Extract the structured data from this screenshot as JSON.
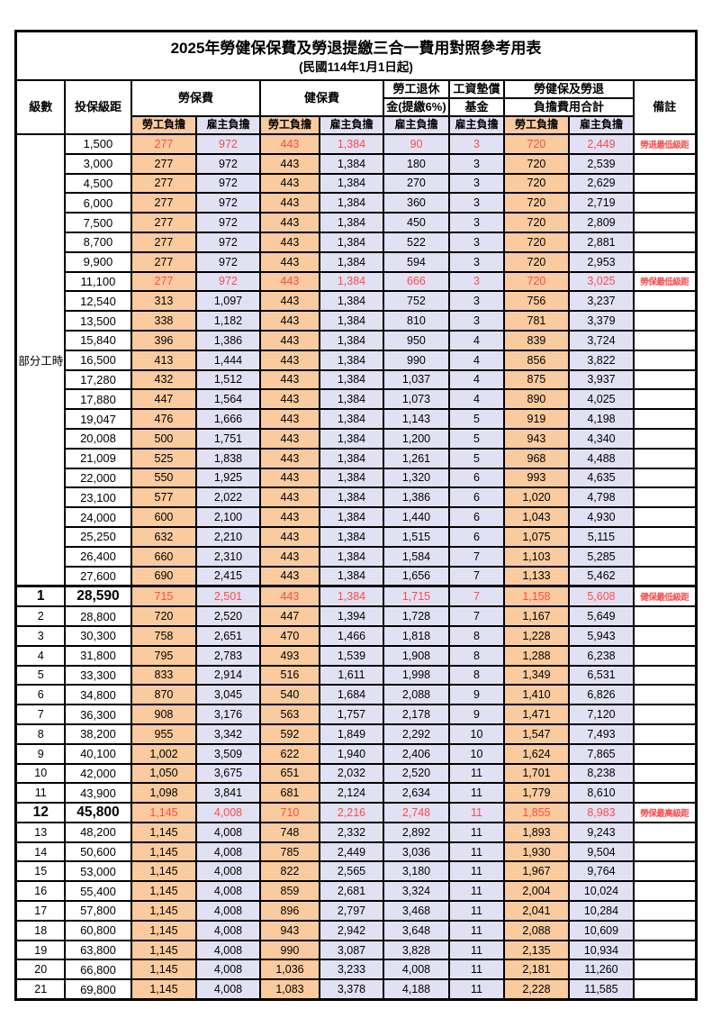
{
  "title": {
    "main": "2025年勞健保保費及勞退提繳三合一費用對照參考用表",
    "sub": "(民國114年1月1日起)"
  },
  "colors": {
    "employee_column_bg": "#F9CB9E",
    "employer_column_bg": "#E2E1F3",
    "highlight_red": "#FF4A4A"
  },
  "header": {
    "level": "級數",
    "bracket": "投保級距",
    "labor": "勞保費",
    "health": "健保費",
    "pension_line1": "勞工退休",
    "pension_line2": "金(提繳6%)",
    "fund_line1": "工資墊償",
    "fund_line2": "基金",
    "total_line1": "勞健保及勞退",
    "total_line2": "負擔費用合計",
    "note": "備註",
    "sub_emp": "勞工負擔",
    "sub_er": "雇主負擔"
  },
  "table": {
    "group_label": "部分工時",
    "group_span": 23,
    "rows": [
      {
        "level": null,
        "bracket": "1,500",
        "values": [
          "277",
          "972",
          "443",
          "1,384",
          "90",
          "3",
          "720",
          "2,449"
        ],
        "note": "勞退最低級距",
        "red": true,
        "big": false
      },
      {
        "level": null,
        "bracket": "3,000",
        "values": [
          "277",
          "972",
          "443",
          "1,384",
          "180",
          "3",
          "720",
          "2,539"
        ],
        "note": "",
        "red": false,
        "big": false
      },
      {
        "level": null,
        "bracket": "4,500",
        "values": [
          "277",
          "972",
          "443",
          "1,384",
          "270",
          "3",
          "720",
          "2,629"
        ],
        "note": "",
        "red": false,
        "big": false
      },
      {
        "level": null,
        "bracket": "6,000",
        "values": [
          "277",
          "972",
          "443",
          "1,384",
          "360",
          "3",
          "720",
          "2,719"
        ],
        "note": "",
        "red": false,
        "big": false
      },
      {
        "level": null,
        "bracket": "7,500",
        "values": [
          "277",
          "972",
          "443",
          "1,384",
          "450",
          "3",
          "720",
          "2,809"
        ],
        "note": "",
        "red": false,
        "big": false
      },
      {
        "level": null,
        "bracket": "8,700",
        "values": [
          "277",
          "972",
          "443",
          "1,384",
          "522",
          "3",
          "720",
          "2,881"
        ],
        "note": "",
        "red": false,
        "big": false
      },
      {
        "level": null,
        "bracket": "9,900",
        "values": [
          "277",
          "972",
          "443",
          "1,384",
          "594",
          "3",
          "720",
          "2,953"
        ],
        "note": "",
        "red": false,
        "big": false
      },
      {
        "level": null,
        "bracket": "11,100",
        "values": [
          "277",
          "972",
          "443",
          "1,384",
          "666",
          "3",
          "720",
          "3,025"
        ],
        "note": "勞保最低級距",
        "red": true,
        "big": false
      },
      {
        "level": null,
        "bracket": "12,540",
        "values": [
          "313",
          "1,097",
          "443",
          "1,384",
          "752",
          "3",
          "756",
          "3,237"
        ],
        "note": "",
        "red": false,
        "big": false
      },
      {
        "level": null,
        "bracket": "13,500",
        "values": [
          "338",
          "1,182",
          "443",
          "1,384",
          "810",
          "3",
          "781",
          "3,379"
        ],
        "note": "",
        "red": false,
        "big": false
      },
      {
        "level": null,
        "bracket": "15,840",
        "values": [
          "396",
          "1,386",
          "443",
          "1,384",
          "950",
          "4",
          "839",
          "3,724"
        ],
        "note": "",
        "red": false,
        "big": false
      },
      {
        "level": null,
        "bracket": "16,500",
        "values": [
          "413",
          "1,444",
          "443",
          "1,384",
          "990",
          "4",
          "856",
          "3,822"
        ],
        "note": "",
        "red": false,
        "big": false
      },
      {
        "level": null,
        "bracket": "17,280",
        "values": [
          "432",
          "1,512",
          "443",
          "1,384",
          "1,037",
          "4",
          "875",
          "3,937"
        ],
        "note": "",
        "red": false,
        "big": false
      },
      {
        "level": null,
        "bracket": "17,880",
        "values": [
          "447",
          "1,564",
          "443",
          "1,384",
          "1,073",
          "4",
          "890",
          "4,025"
        ],
        "note": "",
        "red": false,
        "big": false
      },
      {
        "level": null,
        "bracket": "19,047",
        "values": [
          "476",
          "1,666",
          "443",
          "1,384",
          "1,143",
          "5",
          "919",
          "4,198"
        ],
        "note": "",
        "red": false,
        "big": false
      },
      {
        "level": null,
        "bracket": "20,008",
        "values": [
          "500",
          "1,751",
          "443",
          "1,384",
          "1,200",
          "5",
          "943",
          "4,340"
        ],
        "note": "",
        "red": false,
        "big": false
      },
      {
        "level": null,
        "bracket": "21,009",
        "values": [
          "525",
          "1,838",
          "443",
          "1,384",
          "1,261",
          "5",
          "968",
          "4,488"
        ],
        "note": "",
        "red": false,
        "big": false
      },
      {
        "level": null,
        "bracket": "22,000",
        "values": [
          "550",
          "1,925",
          "443",
          "1,384",
          "1,320",
          "6",
          "993",
          "4,635"
        ],
        "note": "",
        "red": false,
        "big": false
      },
      {
        "level": null,
        "bracket": "23,100",
        "values": [
          "577",
          "2,022",
          "443",
          "1,384",
          "1,386",
          "6",
          "1,020",
          "4,798"
        ],
        "note": "",
        "red": false,
        "big": false
      },
      {
        "level": null,
        "bracket": "24,000",
        "values": [
          "600",
          "2,100",
          "443",
          "1,384",
          "1,440",
          "6",
          "1,043",
          "4,930"
        ],
        "note": "",
        "red": false,
        "big": false
      },
      {
        "level": null,
        "bracket": "25,250",
        "values": [
          "632",
          "2,210",
          "443",
          "1,384",
          "1,515",
          "6",
          "1,075",
          "5,115"
        ],
        "note": "",
        "red": false,
        "big": false
      },
      {
        "level": null,
        "bracket": "26,400",
        "values": [
          "660",
          "2,310",
          "443",
          "1,384",
          "1,584",
          "7",
          "1,103",
          "5,285"
        ],
        "note": "",
        "red": false,
        "big": false
      },
      {
        "level": null,
        "bracket": "27,600",
        "values": [
          "690",
          "2,415",
          "443",
          "1,384",
          "1,656",
          "7",
          "1,133",
          "5,462"
        ],
        "note": "",
        "red": false,
        "big": false
      },
      {
        "level": "1",
        "bracket": "28,590",
        "values": [
          "715",
          "2,501",
          "443",
          "1,384",
          "1,715",
          "7",
          "1,158",
          "5,608"
        ],
        "note": "健保最低級距",
        "red": true,
        "big": true
      },
      {
        "level": "2",
        "bracket": "28,800",
        "values": [
          "720",
          "2,520",
          "447",
          "1,394",
          "1,728",
          "7",
          "1,167",
          "5,649"
        ],
        "note": "",
        "red": false,
        "big": false
      },
      {
        "level": "3",
        "bracket": "30,300",
        "values": [
          "758",
          "2,651",
          "470",
          "1,466",
          "1,818",
          "8",
          "1,228",
          "5,943"
        ],
        "note": "",
        "red": false,
        "big": false
      },
      {
        "level": "4",
        "bracket": "31,800",
        "values": [
          "795",
          "2,783",
          "493",
          "1,539",
          "1,908",
          "8",
          "1,288",
          "6,238"
        ],
        "note": "",
        "red": false,
        "big": false
      },
      {
        "level": "5",
        "bracket": "33,300",
        "values": [
          "833",
          "2,914",
          "516",
          "1,611",
          "1,998",
          "8",
          "1,349",
          "6,531"
        ],
        "note": "",
        "red": false,
        "big": false
      },
      {
        "level": "6",
        "bracket": "34,800",
        "values": [
          "870",
          "3,045",
          "540",
          "1,684",
          "2,088",
          "9",
          "1,410",
          "6,826"
        ],
        "note": "",
        "red": false,
        "big": false
      },
      {
        "level": "7",
        "bracket": "36,300",
        "values": [
          "908",
          "3,176",
          "563",
          "1,757",
          "2,178",
          "9",
          "1,471",
          "7,120"
        ],
        "note": "",
        "red": false,
        "big": false
      },
      {
        "level": "8",
        "bracket": "38,200",
        "values": [
          "955",
          "3,342",
          "592",
          "1,849",
          "2,292",
          "10",
          "1,547",
          "7,493"
        ],
        "note": "",
        "red": false,
        "big": false
      },
      {
        "level": "9",
        "bracket": "40,100",
        "values": [
          "1,002",
          "3,509",
          "622",
          "1,940",
          "2,406",
          "10",
          "1,624",
          "7,865"
        ],
        "note": "",
        "red": false,
        "big": false
      },
      {
        "level": "10",
        "bracket": "42,000",
        "values": [
          "1,050",
          "3,675",
          "651",
          "2,032",
          "2,520",
          "11",
          "1,701",
          "8,238"
        ],
        "note": "",
        "red": false,
        "big": false
      },
      {
        "level": "11",
        "bracket": "43,900",
        "values": [
          "1,098",
          "3,841",
          "681",
          "2,124",
          "2,634",
          "11",
          "1,779",
          "8,610"
        ],
        "note": "",
        "red": false,
        "big": false
      },
      {
        "level": "12",
        "bracket": "45,800",
        "values": [
          "1,145",
          "4,008",
          "710",
          "2,216",
          "2,748",
          "11",
          "1,855",
          "8,983"
        ],
        "note": "勞保最高級距",
        "red": true,
        "big": true
      },
      {
        "level": "13",
        "bracket": "48,200",
        "values": [
          "1,145",
          "4,008",
          "748",
          "2,332",
          "2,892",
          "11",
          "1,893",
          "9,243"
        ],
        "note": "",
        "red": false,
        "big": false
      },
      {
        "level": "14",
        "bracket": "50,600",
        "values": [
          "1,145",
          "4,008",
          "785",
          "2,449",
          "3,036",
          "11",
          "1,930",
          "9,504"
        ],
        "note": "",
        "red": false,
        "big": false
      },
      {
        "level": "15",
        "bracket": "53,000",
        "values": [
          "1,145",
          "4,008",
          "822",
          "2,565",
          "3,180",
          "11",
          "1,967",
          "9,764"
        ],
        "note": "",
        "red": false,
        "big": false
      },
      {
        "level": "16",
        "bracket": "55,400",
        "values": [
          "1,145",
          "4,008",
          "859",
          "2,681",
          "3,324",
          "11",
          "2,004",
          "10,024"
        ],
        "note": "",
        "red": false,
        "big": false
      },
      {
        "level": "17",
        "bracket": "57,800",
        "values": [
          "1,145",
          "4,008",
          "896",
          "2,797",
          "3,468",
          "11",
          "2,041",
          "10,284"
        ],
        "note": "",
        "red": false,
        "big": false
      },
      {
        "level": "18",
        "bracket": "60,800",
        "values": [
          "1,145",
          "4,008",
          "943",
          "2,942",
          "3,648",
          "11",
          "2,088",
          "10,609"
        ],
        "note": "",
        "red": false,
        "big": false
      },
      {
        "level": "19",
        "bracket": "63,800",
        "values": [
          "1,145",
          "4,008",
          "990",
          "3,087",
          "3,828",
          "11",
          "2,135",
          "10,934"
        ],
        "note": "",
        "red": false,
        "big": false
      },
      {
        "level": "20",
        "bracket": "66,800",
        "values": [
          "1,145",
          "4,008",
          "1,036",
          "3,233",
          "4,008",
          "11",
          "2,181",
          "11,260"
        ],
        "note": "",
        "red": false,
        "big": false
      },
      {
        "level": "21",
        "bracket": "69,800",
        "values": [
          "1,145",
          "4,008",
          "1,083",
          "3,378",
          "4,188",
          "11",
          "2,228",
          "11,585"
        ],
        "note": "",
        "red": false,
        "big": false
      }
    ]
  }
}
